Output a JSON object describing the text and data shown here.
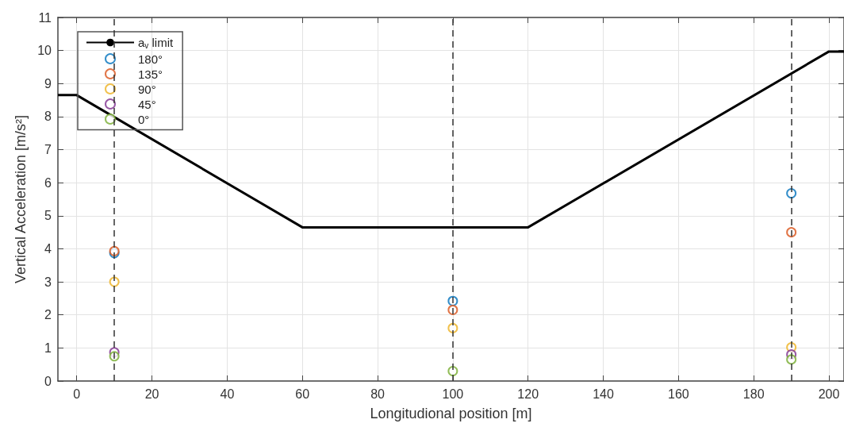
{
  "chart_data": {
    "type": "scatter",
    "xlabel": "Longitudional position [m]",
    "ylabel": "Vertical Acceleration [m/s²]",
    "x": [
      10,
      100,
      190
    ],
    "series": [
      {
        "name": "a$_{v}$ limit",
        "type": "line",
        "color": "#000000",
        "marker": "none",
        "x": [
          -5,
          0,
          60,
          120,
          200,
          204
        ],
        "values": [
          8.65,
          8.65,
          4.65,
          4.65,
          9.97,
          9.97
        ]
      },
      {
        "name": "180°",
        "color": "#0072bd",
        "values": [
          3.87,
          2.42,
          5.68
        ]
      },
      {
        "name": "135°",
        "color": "#d95319",
        "values": [
          3.93,
          2.15,
          4.5
        ]
      },
      {
        "name": "90°",
        "color": "#edb120",
        "values": [
          3.0,
          1.6,
          1.02
        ]
      },
      {
        "name": "45°",
        "color": "#7e2f8e",
        "values": [
          0.87,
          null,
          0.8
        ]
      },
      {
        "name": "0°",
        "color": "#77ac30",
        "values": [
          0.75,
          0.3,
          0.65
        ]
      }
    ],
    "marker": "circle",
    "ref_lines": [
      {
        "axis": "x",
        "value": 10,
        "color": "#333333",
        "line_style": "dashed"
      },
      {
        "axis": "x",
        "value": 100,
        "color": "#333333",
        "line_style": "dashed"
      },
      {
        "axis": "x",
        "value": 190,
        "color": "#333333",
        "line_style": "dashed"
      }
    ],
    "xlim": [
      -5,
      204
    ],
    "xticks": [
      0,
      20,
      40,
      60,
      80,
      100,
      120,
      140,
      160,
      180,
      200
    ],
    "ylim": [
      0,
      11
    ],
    "yticks": [
      0,
      1,
      2,
      3,
      4,
      5,
      6,
      7,
      8,
      9,
      10,
      11
    ],
    "grid": true,
    "legend": "top left"
  }
}
